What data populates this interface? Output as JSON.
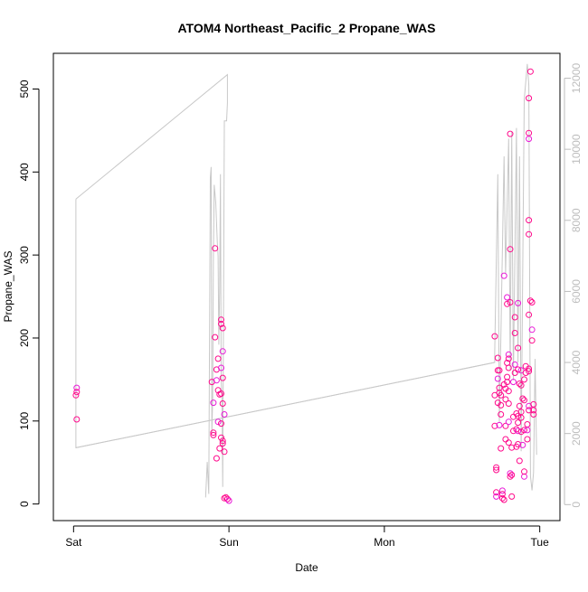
{
  "chart_data": {
    "type": "scatter",
    "title": "ATOM4 Northeast_Pacific_2 Propane_WAS",
    "xlabel": "Date",
    "ylabel": "Propane_WAS",
    "x_ticks": [
      "Sat",
      "Sun",
      "Mon",
      "Tue"
    ],
    "xlim": [
      -0.13,
      3.13
    ],
    "ylim": [
      -20,
      543
    ],
    "y_ticks": [
      0,
      100,
      200,
      300,
      400,
      500
    ],
    "y2lim": [
      -450,
      12700
    ],
    "y2_ticks": [
      0,
      2000,
      4000,
      6000,
      8000,
      10000,
      12000
    ],
    "grid": false,
    "legend": "none",
    "colors": {
      "points": "#ff0a8c",
      "points_alt": "#e81ad8",
      "line": "#c8c8c8",
      "secondary_axis": "#bdbdbd",
      "axis": "#000000"
    },
    "series": [
      {
        "type": "scatter",
        "axis": "left",
        "points": [
          [
            0.02,
            140
          ],
          [
            0.015,
            131
          ],
          [
            0.02,
            135
          ],
          [
            0.02,
            102
          ],
          [
            0.89,
            147
          ],
          [
            0.9,
            122
          ],
          [
            0.9,
            86
          ],
          [
            0.9,
            83
          ],
          [
            0.91,
            308
          ],
          [
            0.91,
            201
          ],
          [
            0.92,
            149
          ],
          [
            0.92,
            162
          ],
          [
            0.92,
            55
          ],
          [
            0.93,
            175
          ],
          [
            0.93,
            137
          ],
          [
            0.93,
            99
          ],
          [
            0.94,
            132
          ],
          [
            0.94,
            67
          ],
          [
            0.95,
            222
          ],
          [
            0.95,
            217
          ],
          [
            0.95,
            164
          ],
          [
            0.95,
            133
          ],
          [
            0.95,
            97
          ],
          [
            0.95,
            80
          ],
          [
            0.96,
            212
          ],
          [
            0.96,
            184
          ],
          [
            0.96,
            152
          ],
          [
            0.96,
            121
          ],
          [
            0.96,
            76
          ],
          [
            0.96,
            73
          ],
          [
            0.97,
            108
          ],
          [
            0.97,
            63
          ],
          [
            0.97,
            7
          ],
          [
            0.98,
            8
          ],
          [
            0.99,
            6
          ],
          [
            1.0,
            4
          ],
          [
            2.71,
            202
          ],
          [
            2.71,
            131
          ],
          [
            2.71,
            94
          ],
          [
            2.72,
            14
          ],
          [
            2.72,
            9
          ],
          [
            2.72,
            41
          ],
          [
            2.72,
            44
          ],
          [
            2.73,
            176
          ],
          [
            2.73,
            161
          ],
          [
            2.73,
            151
          ],
          [
            2.73,
            122
          ],
          [
            2.74,
            161
          ],
          [
            2.74,
            140
          ],
          [
            2.74,
            134
          ],
          [
            2.74,
            95
          ],
          [
            2.75,
            131
          ],
          [
            2.75,
            119
          ],
          [
            2.75,
            108
          ],
          [
            2.75,
            67
          ],
          [
            2.76,
            16
          ],
          [
            2.76,
            12
          ],
          [
            2.76,
            7
          ],
          [
            2.77,
            144
          ],
          [
            2.77,
            5
          ],
          [
            2.77,
            275
          ],
          [
            2.78,
            139
          ],
          [
            2.78,
            78
          ],
          [
            2.78,
            94
          ],
          [
            2.78,
            126
          ],
          [
            2.79,
            249
          ],
          [
            2.79,
            241
          ],
          [
            2.79,
            170
          ],
          [
            2.79,
            153
          ],
          [
            2.79,
            147
          ],
          [
            2.8,
            180
          ],
          [
            2.8,
            175
          ],
          [
            2.8,
            164
          ],
          [
            2.8,
            136
          ],
          [
            2.8,
            121
          ],
          [
            2.8,
            99
          ],
          [
            2.8,
            74
          ],
          [
            2.81,
            307
          ],
          [
            2.81,
            243
          ],
          [
            2.81,
            446
          ],
          [
            2.81,
            37
          ],
          [
            2.81,
            33
          ],
          [
            2.82,
            9
          ],
          [
            2.82,
            35
          ],
          [
            2.82,
            68
          ],
          [
            2.83,
            147
          ],
          [
            2.83,
            105
          ],
          [
            2.83,
            88
          ],
          [
            2.84,
            225
          ],
          [
            2.84,
            206
          ],
          [
            2.84,
            168
          ],
          [
            2.84,
            158
          ],
          [
            2.85,
            109
          ],
          [
            2.85,
            90
          ],
          [
            2.85,
            69
          ],
          [
            2.86,
            242
          ],
          [
            2.86,
            188
          ],
          [
            2.86,
            162
          ],
          [
            2.86,
            106
          ],
          [
            2.86,
            98
          ],
          [
            2.86,
            88
          ],
          [
            2.86,
            72
          ],
          [
            2.87,
            145
          ],
          [
            2.87,
            118
          ],
          [
            2.87,
            52
          ],
          [
            2.88,
            161
          ],
          [
            2.88,
            143
          ],
          [
            2.88,
            111
          ],
          [
            2.88,
            104
          ],
          [
            2.88,
            87
          ],
          [
            2.89,
            71
          ],
          [
            2.89,
            127
          ],
          [
            2.9,
            150
          ],
          [
            2.9,
            125
          ],
          [
            2.9,
            89
          ],
          [
            2.9,
            33
          ],
          [
            2.9,
            39
          ],
          [
            2.91,
            166
          ],
          [
            2.91,
            158
          ],
          [
            2.92,
            96
          ],
          [
            2.92,
            89
          ],
          [
            2.92,
            78
          ],
          [
            2.93,
            228
          ],
          [
            2.93,
            163
          ],
          [
            2.93,
            160
          ],
          [
            2.93,
            118
          ],
          [
            2.93,
            113
          ],
          [
            2.93,
            342
          ],
          [
            2.93,
            325
          ],
          [
            2.93,
            447
          ],
          [
            2.93,
            440
          ],
          [
            2.93,
            489
          ],
          [
            2.94,
            521
          ],
          [
            2.94,
            245
          ],
          [
            2.95,
            243
          ],
          [
            2.95,
            210
          ],
          [
            2.95,
            197
          ],
          [
            2.96,
            120
          ],
          [
            2.96,
            113
          ],
          [
            2.96,
            108
          ]
        ]
      },
      {
        "type": "line",
        "axis": "right",
        "points": [
          [
            0.015,
            8600
          ],
          [
            0.015,
            1600
          ],
          [
            2.71,
            4000
          ],
          [
            2.71,
            4300
          ],
          [
            2.73,
            9300
          ],
          [
            2.74,
            2300
          ],
          [
            2.77,
            9800
          ],
          [
            2.78,
            6500
          ],
          [
            2.8,
            10300
          ],
          [
            2.81,
            3800
          ],
          [
            2.82,
            10500
          ],
          [
            2.83,
            3500
          ],
          [
            2.85,
            10600
          ],
          [
            2.86,
            4000
          ],
          [
            2.87,
            9800
          ],
          [
            2.88,
            1500
          ],
          [
            2.9,
            11400
          ],
          [
            2.92,
            12400
          ],
          [
            2.93,
            11800
          ],
          [
            2.94,
            800
          ],
          [
            2.95,
            400
          ],
          [
            2.96,
            900
          ],
          [
            2.97,
            4100
          ],
          [
            2.98,
            1400
          ]
        ]
      },
      {
        "type": "line",
        "axis": "right",
        "points": [
          [
            0.015,
            8600
          ],
          [
            0.99,
            12100
          ],
          [
            0.99,
            11300
          ],
          [
            0.985,
            10800
          ],
          [
            0.97,
            10800
          ],
          [
            0.96,
            500
          ],
          [
            0.955,
            3000
          ],
          [
            0.95,
            3500
          ],
          [
            0.945,
            9300
          ],
          [
            0.94,
            6000
          ],
          [
            0.935,
            4500
          ],
          [
            0.93,
            7000
          ],
          [
            0.925,
            7400
          ],
          [
            0.915,
            8500
          ],
          [
            0.905,
            9000
          ],
          [
            0.9,
            7000
          ],
          [
            0.895,
            3000
          ],
          [
            0.89,
            2000
          ],
          [
            0.885,
            9500
          ],
          [
            0.88,
            9200
          ],
          [
            0.87,
            300
          ],
          [
            0.86,
            1200
          ],
          [
            0.85,
            200
          ]
        ]
      },
      {
        "type": "line",
        "axis": "right",
        "points": [
          [
            0.015,
            1600
          ],
          [
            2.71,
            4000
          ]
        ]
      }
    ]
  }
}
